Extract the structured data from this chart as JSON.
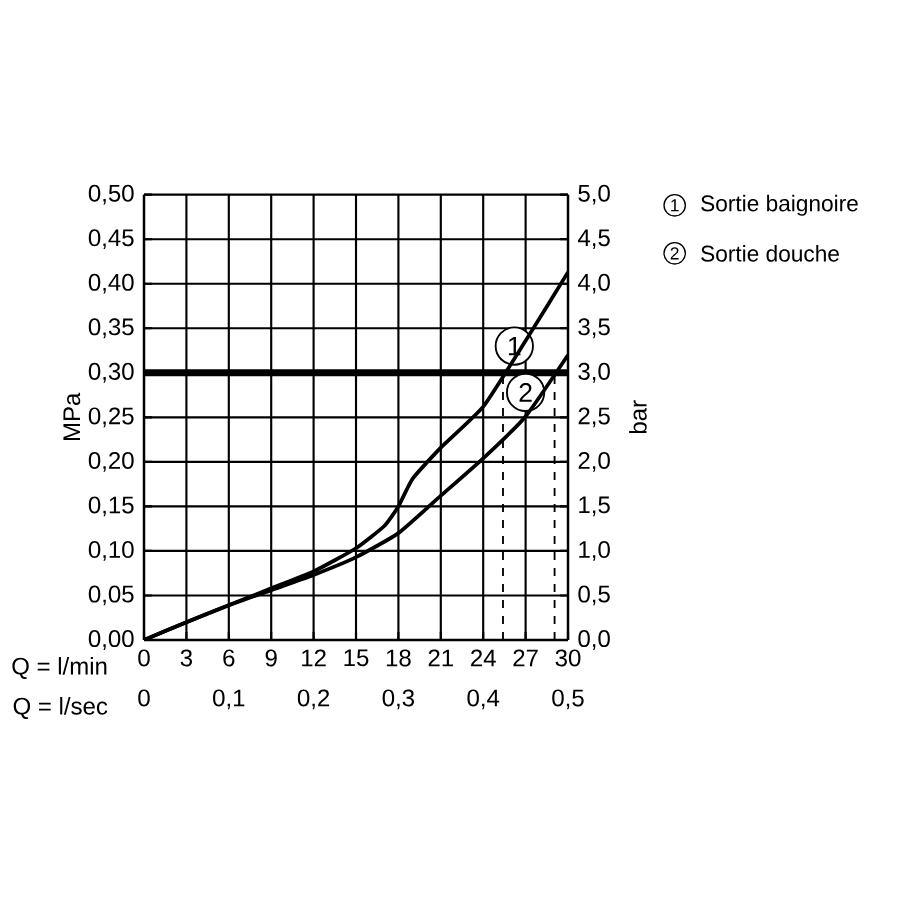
{
  "chart_data": {
    "type": "line",
    "xlabel": "Q = l/min",
    "x2label": "Q = l/sec",
    "ylabel": "MPa",
    "y2label": "bar",
    "xlim": [
      0,
      30
    ],
    "xticks": [
      0,
      3,
      6,
      9,
      12,
      15,
      18,
      21,
      24,
      27,
      30
    ],
    "x2lim": [
      0,
      0.5
    ],
    "x2ticks": [
      0,
      {
        "value": 0.1,
        "label": "0,1"
      },
      {
        "value": 0.2,
        "label": "0,2"
      },
      {
        "value": 0.3,
        "label": "0,3"
      },
      {
        "value": 0.4,
        "label": "0,4"
      },
      {
        "value": 0.5,
        "label": "0,5"
      }
    ],
    "ylim": [
      0,
      0.5
    ],
    "yticks": [
      {
        "value": 0,
        "label": "0,00"
      },
      {
        "value": 0.05,
        "label": "0,05"
      },
      {
        "value": 0.1,
        "label": "0,10"
      },
      {
        "value": 0.15,
        "label": "0,15"
      },
      {
        "value": 0.2,
        "label": "0,20"
      },
      {
        "value": 0.25,
        "label": "0,25"
      },
      {
        "value": 0.3,
        "label": "0,30"
      },
      {
        "value": 0.35,
        "label": "0,35"
      },
      {
        "value": 0.4,
        "label": "0,40"
      },
      {
        "value": 0.45,
        "label": "0,45"
      },
      {
        "value": 0.5,
        "label": "0,50"
      }
    ],
    "y2lim": [
      0,
      5
    ],
    "y2ticks": [
      {
        "value": 0,
        "label": "0,0"
      },
      {
        "value": 0.5,
        "label": "0,5"
      },
      {
        "value": 1,
        "label": "1,0"
      },
      {
        "value": 1.5,
        "label": "1,5"
      },
      {
        "value": 2,
        "label": "2,0"
      },
      {
        "value": 2.5,
        "label": "2,5"
      },
      {
        "value": 3,
        "label": "3,0"
      },
      {
        "value": 3.5,
        "label": "3,5"
      },
      {
        "value": 4,
        "label": "4,0"
      },
      {
        "value": 4.5,
        "label": "4,5"
      },
      {
        "value": 5,
        "label": "5,0"
      }
    ],
    "grid": true,
    "legend": "right",
    "series": [
      {
        "name": "Sortie baignoire",
        "color": "#000000",
        "x": [
          0,
          3,
          6,
          9,
          12,
          15,
          17,
          18,
          19,
          21,
          24,
          27,
          30
        ],
        "values": [
          0,
          0.02,
          0.039,
          0.058,
          0.077,
          0.103,
          0.128,
          0.15,
          0.181,
          0.216,
          0.262,
          0.336,
          0.413
        ]
      },
      {
        "name": "Sortie douche",
        "color": "#000000",
        "x": [
          0,
          3,
          6,
          9,
          12,
          15,
          18,
          21,
          24,
          27,
          30
        ],
        "values": [
          0,
          0.02,
          0.039,
          0.056,
          0.073,
          0.093,
          0.12,
          0.162,
          0.204,
          0.251,
          0.32
        ]
      }
    ],
    "ref_lines": [
      {
        "axis": "y",
        "value": 0.3
      },
      {
        "axis": "x",
        "value": 25.4,
        "line_style": "dashed"
      },
      {
        "axis": "x",
        "value": 29.05,
        "line_style": "dashed"
      }
    ],
    "annotations": [
      {
        "text": "1",
        "x": 26.2,
        "y": 0.33
      },
      {
        "text": "2",
        "x": 27.0,
        "y": 0.278
      }
    ]
  }
}
